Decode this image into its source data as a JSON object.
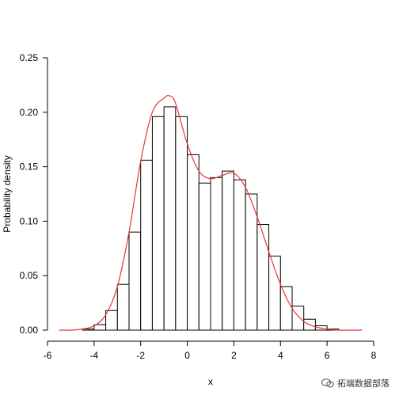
{
  "chart_data": {
    "type": "bar",
    "title": "",
    "xlabel": "x",
    "ylabel": "Probability density",
    "xlim": [
      -6,
      8
    ],
    "ylim": [
      0,
      0.25
    ],
    "xticks": [
      -6,
      -4,
      -2,
      0,
      2,
      4,
      6,
      8
    ],
    "yticks": [
      0.0,
      0.05,
      0.1,
      0.15,
      0.2,
      0.25
    ],
    "ytick_labels": [
      "0.00",
      "0.05",
      "0.10",
      "0.15",
      "0.20",
      "0.25"
    ],
    "grid": false,
    "bar_fill": "#ffffff",
    "bar_stroke": "#000000",
    "bin_width": 0.5,
    "bins": [
      {
        "left": -5.5,
        "value": 0.0
      },
      {
        "left": -5.0,
        "value": 0.0
      },
      {
        "left": -4.5,
        "value": 0.001
      },
      {
        "left": -4.0,
        "value": 0.005
      },
      {
        "left": -3.5,
        "value": 0.018
      },
      {
        "left": -3.0,
        "value": 0.042
      },
      {
        "left": -2.5,
        "value": 0.09
      },
      {
        "left": -2.0,
        "value": 0.156
      },
      {
        "left": -1.5,
        "value": 0.196
      },
      {
        "left": -1.0,
        "value": 0.205
      },
      {
        "left": -0.5,
        "value": 0.196
      },
      {
        "left": 0.0,
        "value": 0.161
      },
      {
        "left": 0.5,
        "value": 0.135
      },
      {
        "left": 1.0,
        "value": 0.14
      },
      {
        "left": 1.5,
        "value": 0.146
      },
      {
        "left": 2.0,
        "value": 0.138
      },
      {
        "left": 2.5,
        "value": 0.125
      },
      {
        "left": 3.0,
        "value": 0.097
      },
      {
        "left": 3.5,
        "value": 0.068
      },
      {
        "left": 4.0,
        "value": 0.04
      },
      {
        "left": 4.5,
        "value": 0.022
      },
      {
        "left": 5.0,
        "value": 0.01
      },
      {
        "left": 5.5,
        "value": 0.004
      },
      {
        "left": 6.0,
        "value": 0.001
      },
      {
        "left": 6.5,
        "value": 0.0
      },
      {
        "left": 7.0,
        "value": 0.0
      }
    ],
    "density_curve": {
      "color": "#e8333b",
      "points": [
        [
          -5.5,
          0.0
        ],
        [
          -5.0,
          0.0
        ],
        [
          -4.5,
          0.001
        ],
        [
          -4.0,
          0.004
        ],
        [
          -3.5,
          0.014
        ],
        [
          -3.0,
          0.04
        ],
        [
          -2.5,
          0.09
        ],
        [
          -2.0,
          0.155
        ],
        [
          -1.5,
          0.2
        ],
        [
          -1.0,
          0.213
        ],
        [
          -0.75,
          0.215
        ],
        [
          -0.5,
          0.208
        ],
        [
          0.0,
          0.171
        ],
        [
          0.5,
          0.146
        ],
        [
          1.0,
          0.139
        ],
        [
          1.5,
          0.142
        ],
        [
          2.0,
          0.144
        ],
        [
          2.5,
          0.131
        ],
        [
          3.0,
          0.104
        ],
        [
          3.5,
          0.072
        ],
        [
          4.0,
          0.042
        ],
        [
          4.5,
          0.02
        ],
        [
          5.0,
          0.008
        ],
        [
          5.5,
          0.003
        ],
        [
          6.0,
          0.001
        ],
        [
          6.5,
          0.0
        ],
        [
          7.0,
          0.0
        ],
        [
          7.5,
          0.0
        ]
      ]
    }
  },
  "watermark": {
    "text": "拓端数据部落"
  }
}
